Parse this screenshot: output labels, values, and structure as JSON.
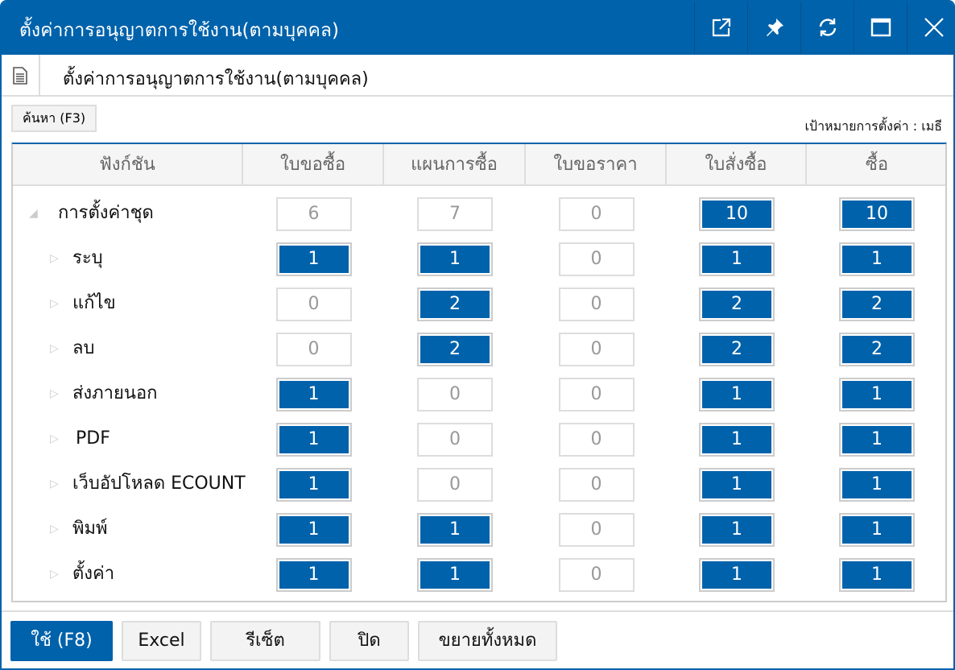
{
  "window": {
    "title": "ตั้งค่าการอนุญาตการใช้งาน(ตามบุคคล)",
    "subtitle": "ตั้งค่าการอนุญาตการใช้งาน(ตามบุคคล)",
    "accent": "#0062ab"
  },
  "toolbar": {
    "search_label": "ค้นหา (F3)",
    "target_label": "เป้าหมายการตั้งค่า : เมธี"
  },
  "table": {
    "headers": [
      "ฟังก์ชัน",
      "ใบขอซื้อ",
      "แผนการซื้อ",
      "ใบขอราคา",
      "ใบสั่งซื้อ",
      "ซื้อ"
    ],
    "rows": [
      {
        "label": "การตั้งค่าชุด",
        "expanded": true,
        "values": [
          "6",
          "7",
          "0",
          "10",
          "10"
        ],
        "on": [
          false,
          false,
          false,
          true,
          true
        ]
      },
      {
        "label": "ระบุ",
        "values": [
          "1",
          "1",
          "0",
          "1",
          "1"
        ],
        "on": [
          true,
          true,
          false,
          true,
          true
        ]
      },
      {
        "label": "แก้ไข",
        "values": [
          "0",
          "2",
          "0",
          "2",
          "2"
        ],
        "on": [
          false,
          true,
          false,
          true,
          true
        ]
      },
      {
        "label": "ลบ",
        "values": [
          "0",
          "2",
          "0",
          "2",
          "2"
        ],
        "on": [
          false,
          true,
          false,
          true,
          true
        ]
      },
      {
        "label": "ส่งภายนอก",
        "values": [
          "1",
          "0",
          "0",
          "1",
          "1"
        ],
        "on": [
          true,
          false,
          false,
          true,
          true
        ]
      },
      {
        "label": "PDF",
        "values": [
          "1",
          "0",
          "0",
          "1",
          "1"
        ],
        "on": [
          true,
          false,
          false,
          true,
          true
        ]
      },
      {
        "label": "เว็บอัปโหลด ECOUNT",
        "values": [
          "1",
          "0",
          "0",
          "1",
          "1"
        ],
        "on": [
          true,
          false,
          false,
          true,
          true
        ]
      },
      {
        "label": "พิมพ์",
        "values": [
          "1",
          "1",
          "0",
          "1",
          "1"
        ],
        "on": [
          true,
          true,
          false,
          true,
          true
        ]
      },
      {
        "label": "ตั้งค่า",
        "values": [
          "1",
          "1",
          "0",
          "1",
          "1"
        ],
        "on": [
          true,
          true,
          false,
          true,
          true
        ]
      }
    ]
  },
  "footer": {
    "apply": "ใช้ (F8)",
    "excel": "Excel",
    "reset": "รีเซ็ต",
    "close": "ปิด",
    "expand_all": "ขยายทั้งหมด"
  }
}
